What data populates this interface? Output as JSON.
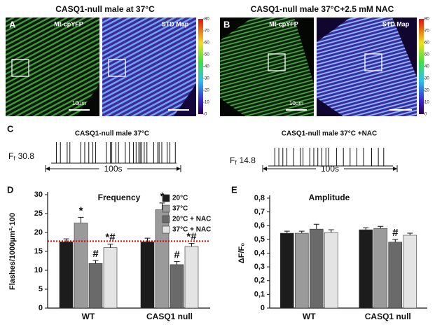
{
  "figure_a": {
    "letter": "A",
    "title": "CASQ1-null male at 37°C",
    "left_label": "Mt-cpYFP",
    "right_label": "STD Map",
    "scale_label": "10µm"
  },
  "figure_b": {
    "letter": "B",
    "title": "CASQ1-null male 37°C+2.5 mM NAC",
    "left_label": "Mt-cpYFP",
    "right_label": "STD Map",
    "scale_label": "10µm"
  },
  "colorbar": {
    "lim": [
      0,
      80
    ],
    "ticks": [
      0,
      10,
      20,
      30,
      40,
      50,
      60,
      70,
      80
    ]
  },
  "figure_c": {
    "letter": "C",
    "traces": [
      {
        "title": "CASQ1-null male 37°C",
        "label": "F",
        "label_sub": "f",
        "label_value": 30.8,
        "duration": "100s",
        "xlim": [
          0,
          100
        ],
        "events": [
          8,
          11,
          16,
          18,
          26,
          29,
          32,
          35,
          37,
          45,
          48,
          49,
          52,
          54,
          59,
          62,
          65,
          67,
          69,
          70,
          71,
          73,
          75,
          80,
          83,
          84,
          86,
          90,
          92,
          96
        ]
      },
      {
        "title": "CASQ1-null male 37°C +NAC",
        "label": "F",
        "label_sub": "f",
        "label_value": 14.8,
        "duration": "100s",
        "xlim": [
          0,
          100
        ],
        "events": [
          9,
          12,
          15,
          18,
          23,
          28,
          30,
          35,
          38,
          41,
          44,
          47,
          49,
          55,
          60,
          65,
          70,
          75,
          81,
          86,
          90
        ]
      }
    ]
  },
  "chart_data": [
    {
      "type": "bar",
      "letter": "D",
      "title": "Frequency",
      "y_label": "Flashes/1000µm²·100",
      "categories": [
        "WT",
        "CASQ1 null"
      ],
      "series": [
        {
          "name": "20°C",
          "color": "#1c1c1c",
          "values": [
            17.5,
            17.5
          ],
          "errors": [
            0.8,
            1.0
          ],
          "annotations": [
            null,
            null
          ]
        },
        {
          "name": "37°C",
          "color": "#9a9a9a",
          "values": [
            22.5,
            26
          ],
          "errors": [
            1.5,
            1.8
          ],
          "annotations": [
            "*",
            "*"
          ]
        },
        {
          "name": "20°C + NAC",
          "color": "#6a6a6a",
          "values": [
            11.8,
            11.5
          ],
          "errors": [
            0.8,
            0.8
          ],
          "annotations": [
            "#",
            "#"
          ]
        },
        {
          "name": "37°C + NAC",
          "color": "#e4e4e4",
          "values": [
            16,
            16.3
          ],
          "errors": [
            0.9,
            0.8
          ],
          "annotations": [
            "*#",
            "*#"
          ]
        }
      ],
      "ylim": [
        0,
        30
      ],
      "yticks": [
        0,
        5,
        10,
        15,
        20,
        25,
        30
      ],
      "reference_line": 17.7,
      "reference_color": "#e00000",
      "legend": "upper-right"
    },
    {
      "type": "bar",
      "letter": "E",
      "title": "Amplitude",
      "y_label": "ΔF/F₀",
      "categories": [
        "WT",
        "CASQ1 null"
      ],
      "series": [
        {
          "name": "20°C",
          "color": "#1c1c1c",
          "values": [
            0.545,
            0.57
          ],
          "errors": [
            0.015,
            0.015
          ],
          "annotations": [
            null,
            null
          ]
        },
        {
          "name": "37°C",
          "color": "#9a9a9a",
          "values": [
            0.545,
            0.58
          ],
          "errors": [
            0.015,
            0.015
          ],
          "annotations": [
            null,
            null
          ]
        },
        {
          "name": "20°C + NAC",
          "color": "#6a6a6a",
          "values": [
            0.575,
            0.48
          ],
          "errors": [
            0.035,
            0.02
          ],
          "annotations": [
            null,
            "#"
          ]
        },
        {
          "name": "37°C + NAC",
          "color": "#e4e4e4",
          "values": [
            0.55,
            0.53
          ],
          "errors": [
            0.02,
            0.015
          ],
          "annotations": [
            null,
            null
          ]
        }
      ],
      "ylim": [
        0,
        0.8
      ],
      "yticks": [
        0,
        {
          "value": 0.1,
          "label": "0,1"
        },
        {
          "value": 0.2,
          "label": "0,2"
        },
        {
          "value": 0.3,
          "label": "0,3"
        },
        {
          "value": 0.4,
          "label": "0,4"
        },
        {
          "value": 0.5,
          "label": "0,5"
        },
        {
          "value": 0.6,
          "label": "0,6"
        },
        {
          "value": 0.7,
          "label": "0,7"
        },
        {
          "value": 0.8,
          "label": "0,8"
        }
      ]
    }
  ]
}
